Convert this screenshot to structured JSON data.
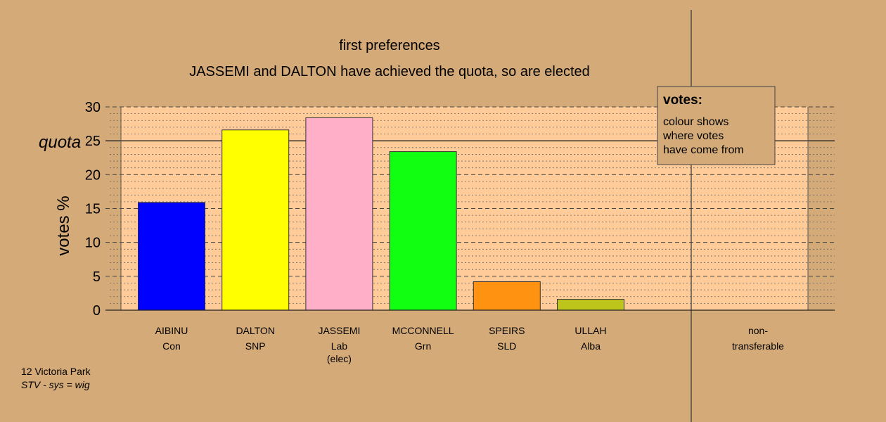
{
  "chart_data": {
    "type": "bar",
    "title": "first preferences",
    "subtitle": "JASSEMI and DALTON have achieved the quota, so are elected",
    "ylabel": "votes %",
    "ylim": [
      0,
      30
    ],
    "yticks": [
      0,
      5,
      10,
      15,
      20,
      25,
      30
    ],
    "quota": 25,
    "quota_label": "quota",
    "grid": true,
    "categories": [
      {
        "name": "AIBINU",
        "party": "Con",
        "note": "",
        "value": 15.9,
        "color": "#0000FF"
      },
      {
        "name": "DALTON",
        "party": "SNP",
        "note": "",
        "value": 26.6,
        "color": "#FFFF00"
      },
      {
        "name": "JASSEMI",
        "party": "Lab",
        "note": "(elec)",
        "value": 28.4,
        "color": "#FFB0C8"
      },
      {
        "name": "MCCONNELL",
        "party": "Grn",
        "note": "",
        "value": 23.4,
        "color": "#11FF11"
      },
      {
        "name": "SPEIRS",
        "party": "SLD",
        "note": "",
        "value": 4.2,
        "color": "#FF9210"
      },
      {
        "name": "ULLAH",
        "party": "Alba",
        "note": "",
        "value": 1.6,
        "color": "#BDC41A"
      }
    ],
    "nontransferable": {
      "label_line1": "non-",
      "label_line2": "transferable",
      "value": 0
    },
    "legend": {
      "title": "votes:",
      "lines": [
        "colour shows",
        "where votes",
        "have come from"
      ],
      "placement": "top-right"
    },
    "colors": {
      "background": "#D4AA78",
      "plot_area": "#FFCC99"
    }
  },
  "footer": {
    "location": "12 Victoria Park",
    "system": "STV - sys = wig"
  }
}
